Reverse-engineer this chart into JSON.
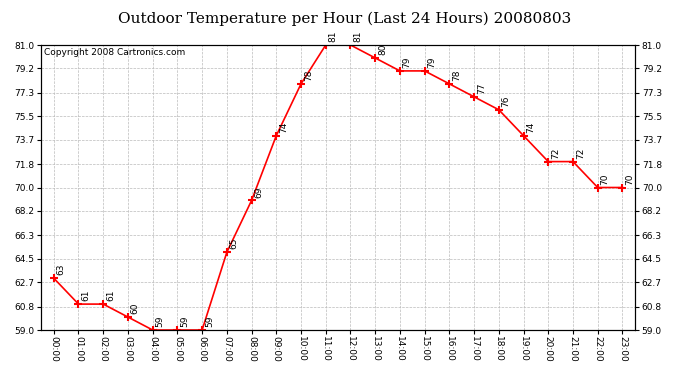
{
  "title": "Outdoor Temperature per Hour (Last 24 Hours) 20080803",
  "copyright": "Copyright 2008 Cartronics.com",
  "hours": [
    "00:00",
    "01:00",
    "02:00",
    "03:00",
    "04:00",
    "05:00",
    "06:00",
    "07:00",
    "08:00",
    "09:00",
    "10:00",
    "11:00",
    "12:00",
    "13:00",
    "14:00",
    "15:00",
    "16:00",
    "17:00",
    "18:00",
    "19:00",
    "20:00",
    "21:00",
    "22:00",
    "23:00"
  ],
  "temps": [
    63,
    61,
    61,
    60,
    59,
    59,
    59,
    65,
    69,
    74,
    78,
    81,
    81,
    80,
    79,
    79,
    78,
    77,
    76,
    74,
    72,
    72,
    70,
    70
  ],
  "ylim": [
    59.0,
    81.0
  ],
  "yticks": [
    59.0,
    60.8,
    62.7,
    64.5,
    66.3,
    68.2,
    70.0,
    71.8,
    73.7,
    75.5,
    77.3,
    79.2,
    81.0
  ],
  "line_color": "red",
  "marker": "+",
  "marker_size": 6,
  "marker_linewidth": 1.5,
  "line_width": 1.2,
  "background_color": "white",
  "grid_color": "#bbbbbb",
  "title_fontsize": 11,
  "label_fontsize": 6.5,
  "copyright_fontsize": 6.5,
  "data_label_fontsize": 6.5
}
